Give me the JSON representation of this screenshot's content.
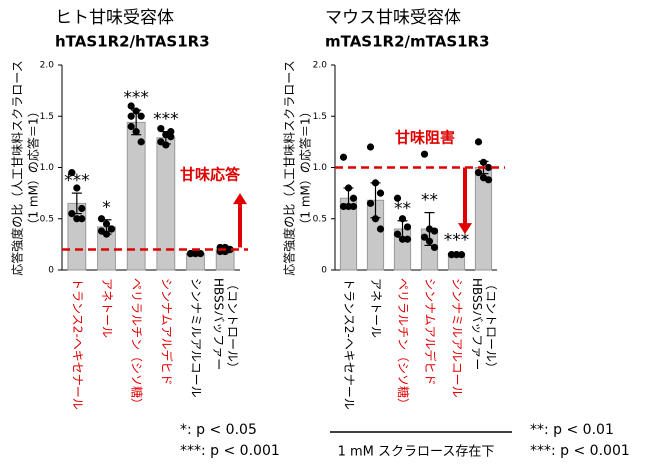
{
  "chart_data": [
    {
      "type": "bar",
      "title": "ヒト甘味受容体",
      "subtitle": "hTAS1R2/hTAS1R3",
      "ylabel": [
        "応答強度の比（人工甘味料スクラロース",
        "（1 mM）の応答＝1）"
      ],
      "categories": [
        "トランス2-ヘキセナール",
        "アネトール",
        "ペリラルチン（シソ糖）",
        "シンナムアルデヒド",
        "シンナミルアルコール",
        [
          "HBSSバッファー",
          "（コントロール）"
        ]
      ],
      "label_colors": [
        "#e00000",
        "#e00000",
        "#e00000",
        "#e00000",
        "#000000",
        "#000000"
      ],
      "values": [
        0.65,
        0.42,
        1.44,
        1.29,
        0.16,
        0.2
      ],
      "errors": [
        0.1,
        0.07,
        0.12,
        0.06,
        0.01,
        0.03
      ],
      "points": [
        [
          0.95,
          0.8,
          0.6,
          0.55,
          0.5,
          0.5
        ],
        [
          0.5,
          0.45,
          0.4,
          0.38,
          0.35,
          0.4
        ],
        [
          1.6,
          1.55,
          1.5,
          1.4,
          1.35,
          1.25,
          1.5
        ],
        [
          1.38,
          1.32,
          1.3,
          1.25,
          1.22,
          1.35
        ],
        [
          0.16,
          0.16,
          0.16,
          0.16,
          0.16
        ],
        [
          0.22,
          0.22,
          0.2,
          0.18,
          0.18
        ]
      ],
      "value_labels": [
        "***",
        "*",
        "***",
        "***",
        null,
        null
      ],
      "color": "#c8c8c8",
      "ylim": [
        0,
        2
      ],
      "yticks": [
        0,
        0.5,
        {
          "value": 1,
          "label": "1.0"
        },
        1.5,
        {
          "value": 2,
          "label": "2.0"
        }
      ],
      "reference_line": 0.2,
      "annotation": "甘味応答",
      "arrow": [
        0.22,
        0.75
      ],
      "footnotes": [
        "*: p < 0.05",
        "***: p < 0.001"
      ]
    },
    {
      "type": "bar",
      "title": "マウス甘味受容体",
      "subtitle": "mTAS1R2/mTAS1R3",
      "ylabel": [
        "応答強度の比（人工甘味料スクラロース",
        "（1 mM）の応答＝1）"
      ],
      "categories": [
        "トランス2-ヘキセナール",
        "アネトール",
        "ペリラルチン（シソ糖）",
        "シンナムアルデヒド",
        "シンナミルアルコール",
        [
          "HBSSバッファー",
          "（コントロール）"
        ]
      ],
      "label_colors": [
        "#000000",
        "#000000",
        "#e00000",
        "#e00000",
        "#e00000",
        "#000000"
      ],
      "values": [
        0.7,
        0.68,
        0.4,
        0.4,
        0.16,
        1.0
      ],
      "errors": [
        0.1,
        0.17,
        0.08,
        0.16,
        0.01,
        0.06
      ],
      "points": [
        [
          1.1,
          0.8,
          0.7,
          0.62,
          0.62,
          0.62
        ],
        [
          1.2,
          0.85,
          0.75,
          0.65,
          0.5,
          0.4
        ],
        [
          0.7,
          0.5,
          0.42,
          0.35,
          0.3,
          0.3
        ],
        [
          1.13,
          0.4,
          0.38,
          0.32,
          0.28,
          0.22
        ],
        [
          0.15,
          0.15,
          0.15,
          0.15,
          0.15
        ],
        [
          1.25,
          1.05,
          1.0,
          0.95,
          0.9,
          0.88
        ]
      ],
      "value_labels": [
        null,
        null,
        "**",
        "**",
        "***",
        null
      ],
      "color": "#c8c8c8",
      "ylim": [
        0,
        2
      ],
      "yticks": [
        0,
        0.5,
        {
          "value": 1,
          "label": "1.0"
        },
        1.5,
        {
          "value": 2,
          "label": "2.0"
        }
      ],
      "reference_line": 1.0,
      "annotation": "甘味阻害",
      "arrow": [
        1.0,
        0.35
      ],
      "xlabel": "1 mM  スクラロース存在下",
      "footnotes": [
        "**: p < 0.01",
        "***: p < 0.001"
      ]
    }
  ]
}
